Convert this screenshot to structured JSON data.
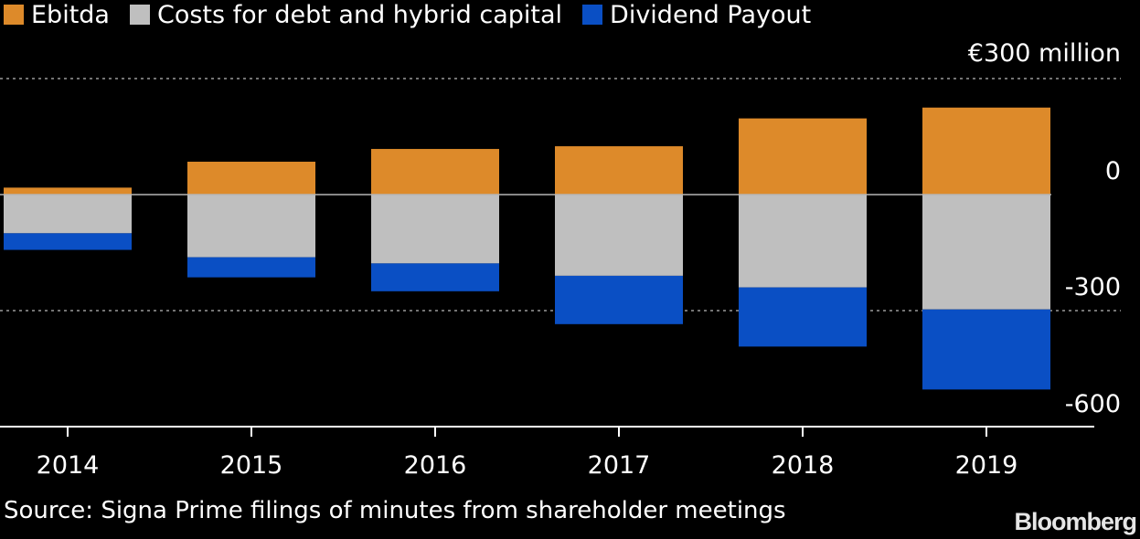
{
  "chart_data": {
    "type": "bar",
    "stacked": true,
    "categories": [
      "2014",
      "2015",
      "2016",
      "2017",
      "2018",
      "2019"
    ],
    "series": [
      {
        "name": "Ebitda",
        "color": "#dd8a2a",
        "values": [
          18,
          85,
          118,
          125,
          197,
          225
        ]
      },
      {
        "name": "Costs for debt and hybrid capital",
        "color": "#bfbfbf",
        "values": [
          -100,
          -162,
          -178,
          -210,
          -240,
          -297
        ]
      },
      {
        "name": "Dividend Payout",
        "color": "#0a4fc4",
        "values": [
          -43,
          -52,
          -72,
          -125,
          -153,
          -207
        ]
      }
    ],
    "unit_label": "€300 million",
    "ytick_labels": [
      "€300 million",
      "0",
      "-300",
      "-600"
    ],
    "yticks": [
      300,
      0,
      -300,
      -600
    ],
    "ylim": [
      -610,
      300
    ],
    "grid": "dashed at 300 and -300",
    "legend_position": "top-left"
  },
  "source": "Source: Signa Prime filings of minutes from shareholder meetings",
  "brand": "Bloomberg"
}
